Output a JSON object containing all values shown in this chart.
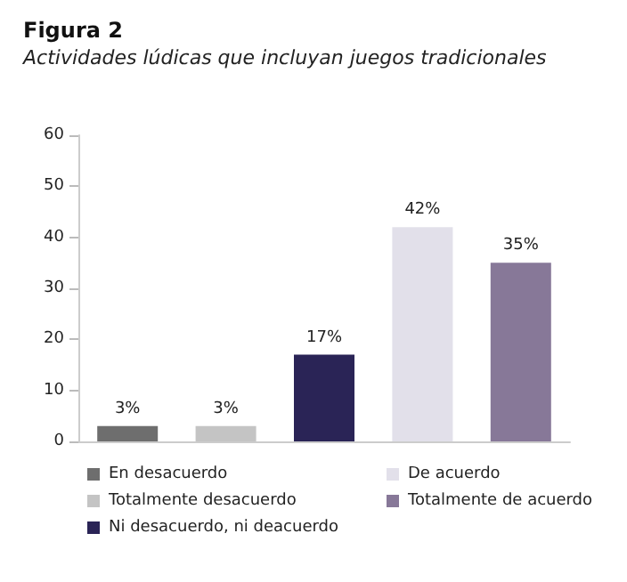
{
  "chart_data": {
    "type": "bar",
    "title": "Figura 2",
    "subtitle": "Actividades lúdicas que incluyan juegos tradicionales",
    "categories": [
      null,
      null,
      null,
      null,
      null
    ],
    "series": [
      {
        "name": "En desacuerdo",
        "color": "#6e6e6e",
        "values": [
          3,
          null,
          null,
          null,
          null
        ],
        "value_labels": [
          "3%",
          null,
          null,
          null,
          null
        ]
      },
      {
        "name": "Totalmente desacuerdo",
        "color": "#c4c4c4",
        "values": [
          null,
          3,
          null,
          null,
          null
        ],
        "value_labels": [
          null,
          "3%",
          null,
          null,
          null
        ]
      },
      {
        "name": "Ni desacuerdo, ni deacuerdo",
        "color": "#2a2456",
        "values": [
          null,
          null,
          17,
          null,
          null
        ],
        "value_labels": [
          null,
          null,
          "17%",
          null,
          null
        ]
      },
      {
        "name": "De acuerdo",
        "color": "#e2e0ea",
        "values": [
          null,
          null,
          null,
          42,
          null
        ],
        "value_labels": [
          null,
          null,
          null,
          "42%",
          null
        ]
      },
      {
        "name": "Totalmente de acuerdo",
        "color": "#877898",
        "values": [
          null,
          null,
          null,
          null,
          35
        ],
        "value_labels": [
          null,
          null,
          null,
          null,
          "35%"
        ]
      }
    ],
    "ylim": [
      0,
      60
    ],
    "yticks": [
      0,
      10,
      20,
      30,
      40,
      50,
      60
    ],
    "grid": false,
    "legend": "bottom"
  }
}
